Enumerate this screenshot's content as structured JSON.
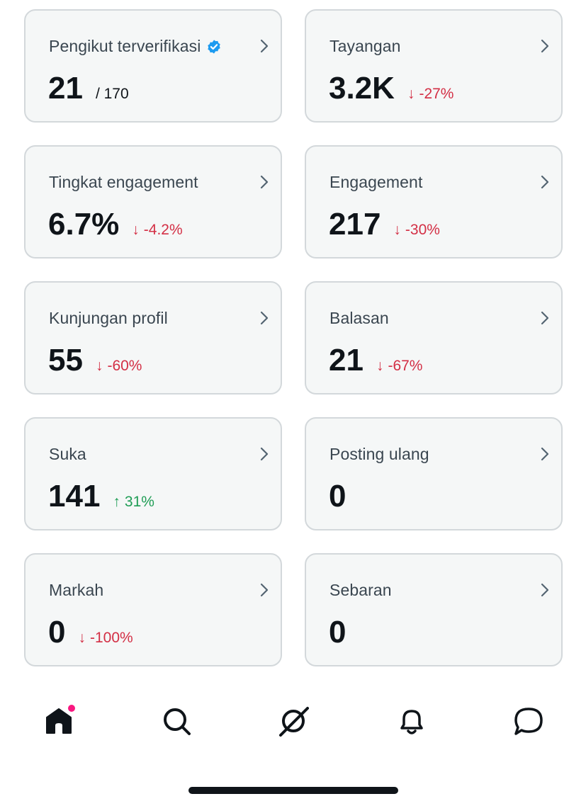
{
  "cards": [
    {
      "id": "verified-followers",
      "title": "Pengikut terverifikasi",
      "value": "21",
      "total": "/ 170",
      "verified": true
    },
    {
      "id": "impressions",
      "title": "Tayangan",
      "value": "3.2K",
      "delta": "-27%",
      "arrow": "↓",
      "direction": "down"
    },
    {
      "id": "engagement-rate",
      "title": "Tingkat engagement",
      "value": "6.7%",
      "delta": "-4.2%",
      "arrow": "↓",
      "direction": "down"
    },
    {
      "id": "engagements",
      "title": "Engagement",
      "value": "217",
      "delta": "-30%",
      "arrow": "↓",
      "direction": "down"
    },
    {
      "id": "profile-visits",
      "title": "Kunjungan profil",
      "value": "55",
      "delta": "-60%",
      "arrow": "↓",
      "direction": "down"
    },
    {
      "id": "replies",
      "title": "Balasan",
      "value": "21",
      "delta": "-67%",
      "arrow": "↓",
      "direction": "down"
    },
    {
      "id": "likes",
      "title": "Suka",
      "value": "141",
      "delta": "31%",
      "arrow": "↑",
      "direction": "up"
    },
    {
      "id": "reposts",
      "title": "Posting ulang",
      "value": "0"
    },
    {
      "id": "bookmarks",
      "title": "Markah",
      "value": "0",
      "delta": "-100%",
      "arrow": "↓",
      "direction": "down"
    },
    {
      "id": "shares",
      "title": "Sebaran",
      "value": "0"
    }
  ],
  "colors": {
    "down": "#d32f45",
    "up": "#1f9d55",
    "verified": "#1d9bf0",
    "notification_dot": "#f91880"
  },
  "nav": {
    "items": [
      {
        "id": "home",
        "icon": "home-icon",
        "active": true,
        "has_dot": true
      },
      {
        "id": "search",
        "icon": "search-icon"
      },
      {
        "id": "grok",
        "icon": "grok-icon"
      },
      {
        "id": "notifications",
        "icon": "bell-icon"
      },
      {
        "id": "messages",
        "icon": "message-icon"
      }
    ]
  }
}
